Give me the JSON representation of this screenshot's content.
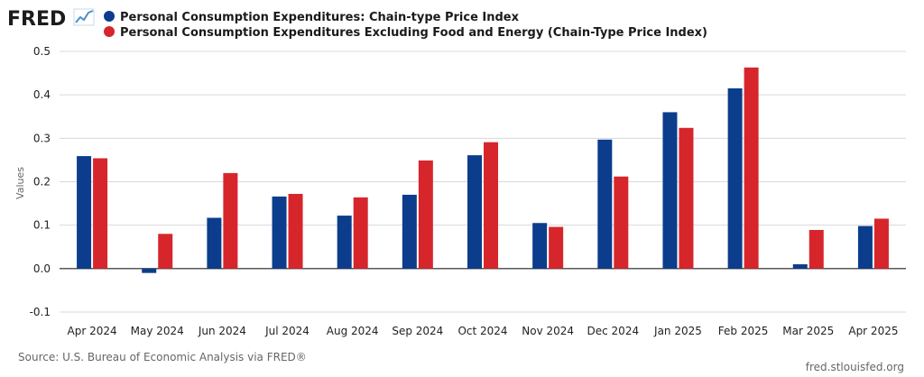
{
  "brand": {
    "name": "FRED",
    "icon": "chart-line-icon",
    "icon_color": "#4a90c8"
  },
  "source_text": "Source: U.S. Bureau of Economic Analysis via FRED®",
  "site_text": "fred.stlouisfed.org",
  "colors": {
    "grid": "#d8d8d8",
    "axis": "#222222"
  },
  "chart_data": {
    "type": "bar",
    "title": "",
    "xlabel": "",
    "ylabel": "Values",
    "ylim": [
      -0.1,
      0.5
    ],
    "yticks": [
      -0.1,
      0.0,
      0.1,
      0.2,
      0.3,
      0.4,
      0.5
    ],
    "ytick_labels": [
      "-0.1",
      "0.0",
      "0.1",
      "0.2",
      "0.3",
      "0.4",
      "0.5"
    ],
    "grid": true,
    "legend_position": "top-left",
    "categories": [
      "Apr 2024",
      "May 2024",
      "Jun 2024",
      "Jul 2024",
      "Aug 2024",
      "Sep 2024",
      "Oct 2024",
      "Nov 2024",
      "Dec 2024",
      "Jan 2025",
      "Feb 2025",
      "Mar 2025",
      "Apr 2025"
    ],
    "series": [
      {
        "name": "Personal Consumption Expenditures: Chain-type Price Index",
        "color": "#0b3d8c",
        "values": [
          0.259,
          -0.01,
          0.117,
          0.166,
          0.122,
          0.17,
          0.261,
          0.105,
          0.297,
          0.36,
          0.415,
          0.01,
          0.098
        ]
      },
      {
        "name": "Personal Consumption Expenditures Excluding Food and Energy (Chain-Type Price Index)",
        "color": "#d6262c",
        "values": [
          0.254,
          0.08,
          0.22,
          0.172,
          0.164,
          0.249,
          0.291,
          0.096,
          0.212,
          0.324,
          0.463,
          0.089,
          0.115
        ]
      }
    ]
  }
}
